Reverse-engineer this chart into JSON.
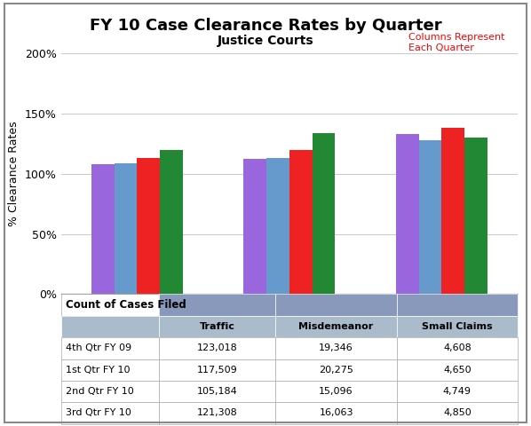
{
  "title": "FY 10 Case Clearance Rates by Quarter",
  "subtitle": "Justice Courts",
  "annotation": "Columns Represent\nEach Quarter",
  "annotation_color": "#FF0000",
  "ylabel": "% Clearance Rates",
  "categories": [
    "Traffic",
    "Misdemeanor",
    "Small Claims"
  ],
  "quarters": [
    "4th Qtr FY 09",
    "1st Qtr FY 10",
    "2nd Qtr FY 10",
    "3rd Qtr FY 10"
  ],
  "bar_colors": [
    "#9966DD",
    "#6699CC",
    "#EE2222",
    "#228833"
  ],
  "values": {
    "Traffic": [
      1.08,
      1.09,
      1.13,
      1.2
    ],
    "Misdemeanor": [
      1.12,
      1.13,
      1.2,
      1.34
    ],
    "Small Claims": [
      1.33,
      1.28,
      1.38,
      1.3
    ]
  },
  "ylim": [
    0,
    2.0
  ],
  "yticks": [
    0,
    0.5,
    1.0,
    1.5,
    2.0
  ],
  "ytick_labels": [
    "0%",
    "50%",
    "100%",
    "150%",
    "200%"
  ],
  "table_header": "Count of Cases Filed",
  "table_col_labels": [
    "",
    "Traffic",
    "Misdemeanor",
    "Small Claims"
  ],
  "table_data": [
    [
      "4th Qtr FY 09",
      "123,018",
      "19,346",
      "4,608"
    ],
    [
      "1st Qtr FY 10",
      "117,509",
      "20,275",
      "4,650"
    ],
    [
      "2nd Qtr FY 10",
      "105,184",
      "15,096",
      "4,749"
    ],
    [
      "3rd Qtr FY 10",
      "121,308",
      "16,063",
      "4,850"
    ]
  ],
  "bg_color": "#FFFFFF",
  "plot_bg_color": "#FFFFFF",
  "grid_color": "#CCCCCC",
  "border_color": "#888888",
  "table_header_bg": "#8899BB",
  "table_col_header_bg": "#AABBCC",
  "table_row_bg": "#FFFFFF",
  "bar_width": 0.15,
  "title_fontsize": 13,
  "subtitle_fontsize": 10
}
